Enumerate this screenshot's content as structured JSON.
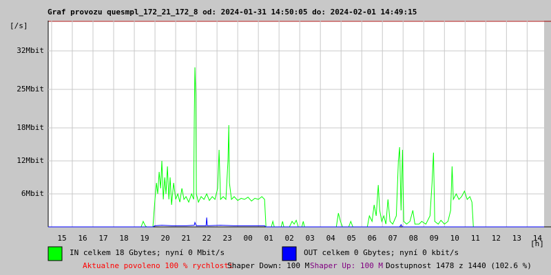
{
  "chart_data": {
    "type": "line",
    "title": "Graf provozu quesmpl_172_21_172_8 od: 2024-01-31 14:50:05 do: 2024-02-01 14:49:15",
    "y_unit_label": "[/s]",
    "x_unit_label": "[h]",
    "xlim": [
      14.8347,
      38.8208
    ],
    "xticks": [
      {
        "value": 15,
        "label": "15"
      },
      {
        "value": 16,
        "label": "16"
      },
      {
        "value": 17,
        "label": "17"
      },
      {
        "value": 18,
        "label": "18"
      },
      {
        "value": 19,
        "label": "19"
      },
      {
        "value": 20,
        "label": "20"
      },
      {
        "value": 21,
        "label": "21"
      },
      {
        "value": 22,
        "label": "22"
      },
      {
        "value": 23,
        "label": "23"
      },
      {
        "value": 24,
        "label": "00"
      },
      {
        "value": 25,
        "label": "01"
      },
      {
        "value": 26,
        "label": "02"
      },
      {
        "value": 27,
        "label": "03"
      },
      {
        "value": 28,
        "label": "04"
      },
      {
        "value": 29,
        "label": "05"
      },
      {
        "value": 30,
        "label": "06"
      },
      {
        "value": 31,
        "label": "07"
      },
      {
        "value": 32,
        "label": "08"
      },
      {
        "value": 33,
        "label": "09"
      },
      {
        "value": 34,
        "label": "10"
      },
      {
        "value": 35,
        "label": "11"
      },
      {
        "value": 36,
        "label": "12"
      },
      {
        "value": 37,
        "label": "13"
      },
      {
        "value": 38,
        "label": "14"
      }
    ],
    "ylim": [
      0,
      37.5
    ],
    "yticks": [
      {
        "value": 6,
        "label": "6Mbit"
      },
      {
        "value": 12,
        "label": "12Mbit"
      },
      {
        "value": 18,
        "label": "18Mbit"
      },
      {
        "value": 25,
        "label": "25Mbit"
      },
      {
        "value": 32,
        "label": "32Mbit"
      }
    ],
    "grid": true,
    "series": [
      {
        "name": "IN celkem 18 Gbytes; nyní 0 Mbit/s",
        "color": "#00ff00",
        "x": [
          14.83,
          19.33,
          19.43,
          19.53,
          19.6,
          19.9,
          20.0,
          20.07,
          20.13,
          20.2,
          20.27,
          20.33,
          20.4,
          20.47,
          20.53,
          20.6,
          20.67,
          20.73,
          20.8,
          20.9,
          21.0,
          21.1,
          21.2,
          21.3,
          21.4,
          21.5,
          21.63,
          21.77,
          21.87,
          21.9,
          21.93,
          21.97,
          22.0,
          22.1,
          22.23,
          22.37,
          22.5,
          22.63,
          22.77,
          22.9,
          23.03,
          23.1,
          23.17,
          23.3,
          23.43,
          23.53,
          23.57,
          23.6,
          23.7,
          23.83,
          24.0,
          24.17,
          24.33,
          24.5,
          24.67,
          24.83,
          25.0,
          25.17,
          25.3,
          25.37,
          25.63,
          25.7,
          25.77,
          26.1,
          26.17,
          26.23,
          26.5,
          26.63,
          26.73,
          26.83,
          26.93,
          27.1,
          27.17,
          27.23,
          28.77,
          28.87,
          28.97,
          29.07,
          29.37,
          29.47,
          29.57,
          30.27,
          30.37,
          30.5,
          30.6,
          30.7,
          30.8,
          30.87,
          30.97,
          31.07,
          31.17,
          31.27,
          31.37,
          31.5,
          31.67,
          31.77,
          31.83,
          31.9,
          31.97,
          32.03,
          32.17,
          32.33,
          32.47,
          32.57,
          32.77,
          32.9,
          33.1,
          33.3,
          33.4,
          33.47,
          33.53,
          33.7,
          33.83,
          34.0,
          34.17,
          34.3,
          34.37,
          34.43,
          34.57,
          34.7,
          34.83,
          34.97,
          35.1,
          35.23,
          35.33,
          35.4,
          38.82
        ],
        "values": [
          0,
          0,
          1,
          0.2,
          0,
          0,
          5,
          8,
          6,
          10,
          7,
          12,
          5,
          9,
          6,
          11,
          5,
          9,
          4,
          8,
          5,
          6,
          4.5,
          7,
          5,
          5.5,
          4.5,
          6,
          5,
          20,
          29,
          24,
          6,
          4.5,
          5.5,
          5,
          6,
          4.8,
          5.5,
          5,
          7,
          14,
          5,
          5.5,
          5,
          12,
          18.5,
          8,
          5,
          5.5,
          4.8,
          5.2,
          5,
          5.4,
          4.7,
          5.2,
          5,
          5.5,
          5,
          0,
          0,
          1,
          0,
          0,
          1,
          0,
          0,
          1,
          0.5,
          1.2,
          0,
          0,
          1,
          0,
          0,
          2.5,
          1,
          0,
          0,
          1,
          0,
          0,
          2,
          1,
          4,
          2,
          7.6,
          3,
          1,
          2,
          0.5,
          5,
          1,
          0.5,
          2,
          12,
          14.5,
          3,
          14,
          1,
          0.5,
          1,
          3,
          0.5,
          0.5,
          1,
          0.5,
          2,
          8,
          13.5,
          1,
          0.5,
          1.2,
          0.5,
          1,
          3,
          11,
          5,
          6,
          5,
          5.5,
          6.5,
          5,
          5.5,
          4.5,
          0,
          0
        ]
      },
      {
        "name": "OUT celkem 0 Gbytes; nyní 0 kbit/s",
        "color": "#0000ff",
        "x": [
          14.83,
          19.9,
          20.0,
          20.33,
          20.83,
          21.5,
          21.9,
          21.93,
          22.0,
          22.47,
          22.5,
          22.53,
          23.17,
          23.83,
          24.5,
          25.3,
          25.37,
          31.83,
          31.9,
          31.97,
          38.82
        ],
        "values": [
          0,
          0,
          0.2,
          0.3,
          0.2,
          0.2,
          0.3,
          0.8,
          0.2,
          0.2,
          1.7,
          0.2,
          0.3,
          0.2,
          0.2,
          0.2,
          0,
          0,
          0.4,
          0,
          0
        ]
      }
    ],
    "footer": [
      {
        "text": "Aktualne povoleno 100 % rychlosti",
        "color": "#ff0000"
      },
      {
        "text": "Shaper Down: 100 M",
        "color": "#000000"
      },
      {
        "text": "Shaper Up: 100 M",
        "color": "#800080"
      },
      {
        "text": "Dostupnost 1478 z 1440 (102.6 %)",
        "color": "#000000"
      }
    ]
  }
}
